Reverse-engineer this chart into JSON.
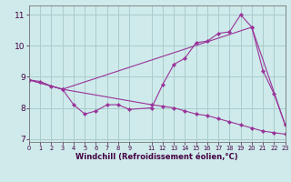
{
  "xlabel": "Windchill (Refroidissement éolien,°C)",
  "background_color": "#ceeaea",
  "grid_color": "#aacccc",
  "line_color": "#993399",
  "line1_x": [
    0,
    1,
    2,
    3,
    11,
    12,
    13,
    14,
    15,
    16,
    17,
    18,
    19,
    20,
    21,
    22,
    23
  ],
  "line1_y": [
    8.9,
    8.85,
    8.7,
    8.6,
    8.1,
    8.05,
    8.0,
    7.9,
    7.8,
    7.75,
    7.65,
    7.55,
    7.45,
    7.35,
    7.25,
    7.2,
    7.15
  ],
  "line2_x": [
    0,
    3,
    4,
    5,
    6,
    7,
    8,
    9,
    11,
    12,
    13,
    14,
    15,
    16,
    17,
    18,
    19,
    20,
    21,
    22,
    23
  ],
  "line2_y": [
    8.9,
    8.6,
    8.1,
    7.8,
    7.9,
    8.1,
    8.1,
    7.95,
    8.0,
    8.75,
    9.4,
    9.6,
    10.1,
    10.15,
    10.4,
    10.45,
    11.0,
    10.6,
    9.2,
    8.45,
    7.45
  ],
  "line3_x": [
    0,
    3,
    20,
    23
  ],
  "line3_y": [
    8.9,
    8.6,
    10.6,
    7.45
  ],
  "xlim": [
    0,
    23
  ],
  "ylim": [
    6.9,
    11.3
  ],
  "yticks": [
    7,
    8,
    9,
    10,
    11
  ],
  "xticks": [
    0,
    1,
    2,
    3,
    4,
    5,
    6,
    7,
    8,
    9,
    11,
    12,
    13,
    14,
    15,
    16,
    17,
    18,
    19,
    20,
    21,
    22,
    23
  ]
}
